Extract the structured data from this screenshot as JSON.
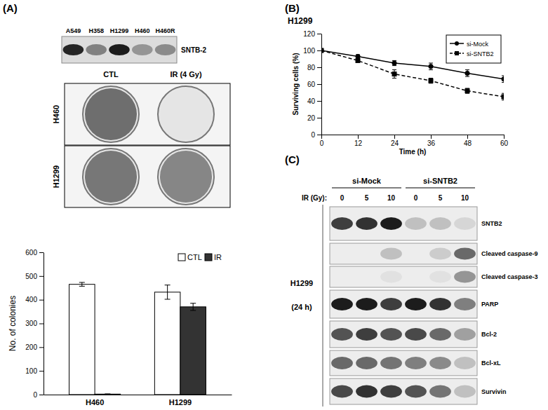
{
  "chart_data": [
    {
      "type": "bar",
      "categories": [
        "H460",
        "H1299"
      ],
      "series": [
        {
          "name": "CTL",
          "color": "#ffffff",
          "values": [
            465,
            432
          ],
          "errors": [
            8,
            30
          ]
        },
        {
          "name": "IR",
          "color": "#333333",
          "values": [
            2,
            370
          ],
          "errors": [
            1,
            15
          ]
        }
      ],
      "y_label": "No. of colonies",
      "ylim": [
        0,
        600
      ],
      "yticks": [
        0,
        100,
        200,
        300,
        400,
        500,
        600
      ],
      "legend": "upper right"
    },
    {
      "type": "line",
      "title": "H1299",
      "x": [
        0,
        12,
        24,
        36,
        48,
        60
      ],
      "series": [
        {
          "name": "si-Mock",
          "color": "#000000",
          "marker": "circle",
          "line_style": "solid",
          "values": [
            100,
            93,
            85,
            81,
            73,
            66
          ],
          "errors": [
            1,
            2,
            3,
            4,
            4,
            4
          ]
        },
        {
          "name": "si-SNTB2",
          "color": "#000000",
          "marker": "square",
          "line_style": "dashed",
          "values": [
            100,
            88,
            72,
            64,
            52,
            45
          ],
          "errors": [
            1,
            2,
            5,
            3,
            3,
            4
          ]
        }
      ],
      "x_label": "Time (h)",
      "y_label": "Surviving cells (%)",
      "xlim": [
        0,
        60
      ],
      "xticks": [
        0,
        12,
        24,
        36,
        48,
        60
      ],
      "ylim": [
        0,
        120
      ],
      "yticks": [
        0,
        20,
        40,
        60,
        80,
        100,
        120
      ],
      "legend": "upper right"
    }
  ],
  "figure": {
    "panels": [
      "(A)",
      "(B)",
      "(C)"
    ],
    "blot_a": {
      "lanes": [
        "A549",
        "H358",
        "H1299",
        "H460",
        "H460R"
      ],
      "label": "SNTB-2",
      "intensity": [
        0.9,
        0.45,
        0.95,
        0.35,
        0.4
      ]
    },
    "plates": {
      "columns": [
        "CTL",
        "IR (4 Gy)"
      ],
      "rows": [
        "H460",
        "H1299"
      ]
    },
    "blot_c": {
      "groups": [
        "si-Mock",
        "si-SNTB2"
      ],
      "dose_label": "IR (Gy):",
      "doses": [
        0,
        5,
        10,
        0,
        5,
        10
      ],
      "cell_line": "H1299",
      "time": "(24 h)",
      "rows": [
        {
          "label": "SNTB2",
          "intensity": [
            0.8,
            0.85,
            0.95,
            0.2,
            0.2,
            0.1
          ]
        },
        {
          "label": "Cleaved caspase-9",
          "intensity": [
            0,
            0,
            0.2,
            0,
            0.15,
            0.6
          ]
        },
        {
          "label": "Cleaved caspase-3",
          "intensity": [
            0,
            0,
            0.05,
            0,
            0.05,
            0.4
          ]
        },
        {
          "label": "PARP",
          "intensity": [
            0.95,
            0.95,
            0.8,
            0.95,
            0.85,
            0.5
          ]
        },
        {
          "label": "Bcl-2",
          "intensity": [
            0.7,
            0.8,
            0.7,
            0.75,
            0.6,
            0.35
          ]
        },
        {
          "label": "Bcl-xL",
          "intensity": [
            0.6,
            0.6,
            0.55,
            0.5,
            0.45,
            0.2
          ]
        },
        {
          "label": "Survivin",
          "intensity": [
            0.75,
            0.85,
            0.8,
            0.7,
            0.55,
            0.2
          ]
        }
      ]
    }
  }
}
